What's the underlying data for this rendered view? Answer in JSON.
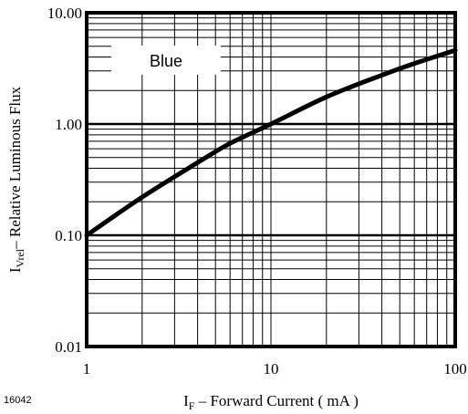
{
  "figure_code": "16042",
  "chart_data": {
    "type": "line",
    "x_scale": "log",
    "y_scale": "log",
    "xlim": [
      1,
      100
    ],
    "ylim": [
      0.01,
      10
    ],
    "x_ticks": [
      {
        "value": 1,
        "label": "1"
      },
      {
        "value": 10,
        "label": "10"
      },
      {
        "value": 100,
        "label": "100"
      }
    ],
    "y_ticks": [
      {
        "value": 0.01,
        "label": "0.01"
      },
      {
        "value": 0.1,
        "label": "0.10"
      },
      {
        "value": 1,
        "label": "1.00"
      },
      {
        "value": 10,
        "label": "10.00"
      }
    ],
    "xlabel": {
      "main": "I",
      "sub": "F",
      "rest": " – Forward Current ( mA )"
    },
    "ylabel": {
      "main": "I",
      "sub": "Vrel",
      "rest": "– Relative Luminous Flux"
    },
    "grid": true,
    "series": [
      {
        "name": "Blue",
        "x": [
          1,
          2,
          4,
          6,
          10,
          20,
          40,
          60,
          100
        ],
        "y": [
          0.1,
          0.22,
          0.45,
          0.67,
          1.0,
          1.75,
          2.75,
          3.5,
          4.6
        ]
      }
    ],
    "legend_placement": "top-left"
  }
}
